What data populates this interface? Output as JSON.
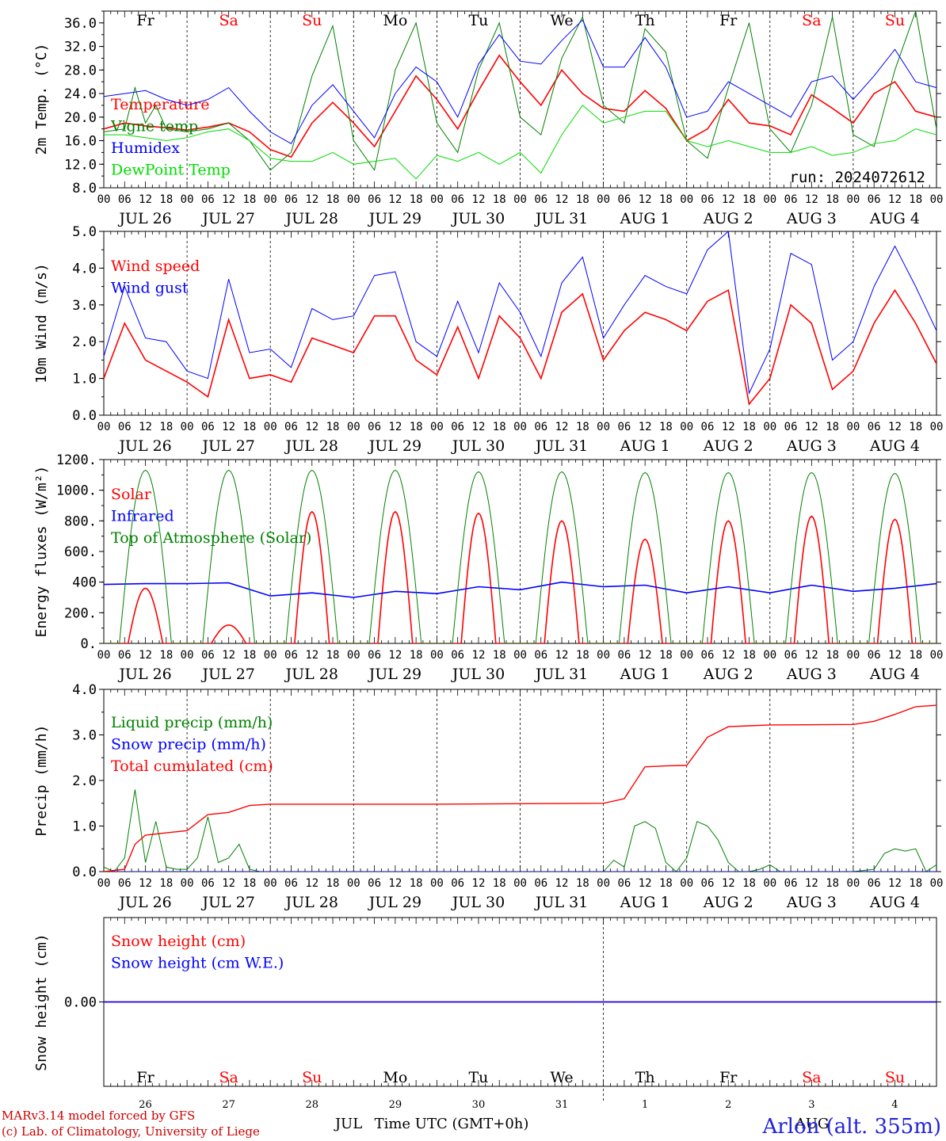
{
  "run_label": "run: 2024072612",
  "station": "Arlon (alt. 355m)",
  "credits": [
    "MARv3.14 model forced by GFS",
    "(c) Lab. of Climatology, University of Liege"
  ],
  "time_axis": {
    "hour_ticks": [
      "00",
      "06",
      "12",
      "18"
    ],
    "date_labels": [
      "JUL 26",
      "JUL 27",
      "JUL 28",
      "JUL 29",
      "JUL 30",
      "JUL 31",
      "AUG  1",
      "AUG  2",
      "AUG  3",
      "AUG  4"
    ],
    "weekdays": [
      "Fr",
      "Sa",
      "Su",
      "Mo",
      "Tu",
      "We",
      "Th",
      "Fr",
      "Sa",
      "Su"
    ],
    "weekday_colors": [
      "#000000",
      "#ff0000",
      "#ff0000",
      "#000000",
      "#000000",
      "#000000",
      "#000000",
      "#000000",
      "#ff0000",
      "#ff0000"
    ],
    "day_numbers": [
      "26",
      "27",
      "28",
      "29",
      "30",
      "31",
      "1",
      "2",
      "3",
      "4"
    ],
    "month_labels": [
      "JUL",
      "AUG"
    ],
    "xlabel": "Time UTC (GMT+0h)",
    "days": 10
  },
  "chart_data": [
    {
      "type": "line",
      "ylabel": "2m Temp. (°C)",
      "ylim": [
        8,
        38
      ],
      "yticks": [
        8,
        12,
        16,
        20,
        24,
        28,
        32,
        36
      ],
      "ytick_labels": [
        "8.0",
        "12.0",
        "16.0",
        "20.0",
        "24.0",
        "28.0",
        "32.0",
        "36.0"
      ],
      "x_unit": "hours since JUL 26 00 UTC",
      "series": [
        {
          "name": "Temperature",
          "color": "#ff0000",
          "width": 1.6,
          "x": [
            0,
            6,
            12,
            18,
            24,
            30,
            36,
            42,
            48,
            54,
            60,
            66,
            72,
            78,
            84,
            90,
            96,
            102,
            108,
            114,
            120,
            126,
            132,
            138,
            144,
            150,
            156,
            162,
            168,
            174,
            180,
            186,
            192,
            198,
            204,
            210,
            216,
            222,
            228,
            234,
            240
          ],
          "y": [
            18,
            19,
            18.5,
            18.2,
            17.8,
            18.3,
            19,
            17.5,
            14.5,
            13.2,
            19,
            22.5,
            19,
            15,
            21,
            27,
            23,
            18,
            24.5,
            30.5,
            26,
            22,
            28,
            24,
            21.5,
            21,
            24.5,
            21.5,
            16,
            18,
            23,
            19,
            18.5,
            17,
            23.8,
            21.5,
            19,
            24,
            26,
            21,
            20
          ]
        },
        {
          "name": "Vigne temp",
          "color": "#008000",
          "width": 1.0,
          "x": [
            0,
            6,
            9,
            12,
            15,
            18,
            24,
            30,
            36,
            42,
            48,
            54,
            60,
            66,
            72,
            78,
            84,
            90,
            96,
            102,
            108,
            114,
            120,
            126,
            132,
            138,
            144,
            150,
            156,
            162,
            168,
            174,
            180,
            186,
            192,
            198,
            204,
            210,
            216,
            222,
            228,
            234,
            240
          ],
          "y": [
            17.5,
            18,
            25,
            19,
            22,
            18,
            17.5,
            18,
            19,
            16,
            11,
            14,
            27,
            35.5,
            16,
            11,
            28,
            36,
            19,
            14,
            28,
            36,
            20,
            17,
            30,
            37,
            22,
            19,
            35,
            31,
            16,
            13,
            25,
            36,
            18,
            14,
            22,
            37,
            17,
            15,
            28,
            38,
            18
          ]
        },
        {
          "name": "Humidex",
          "color": "#0000ff",
          "width": 1.0,
          "x": [
            0,
            6,
            12,
            18,
            24,
            30,
            36,
            42,
            48,
            54,
            60,
            66,
            72,
            78,
            84,
            90,
            96,
            102,
            108,
            114,
            120,
            126,
            132,
            138,
            144,
            150,
            156,
            162,
            168,
            174,
            180,
            186,
            192,
            198,
            204,
            210,
            216,
            222,
            228,
            234,
            240
          ],
          "y": [
            23.5,
            24,
            24.5,
            23,
            22,
            23,
            25,
            21,
            17.5,
            15.5,
            22,
            25.5,
            21,
            16.5,
            24,
            28.5,
            26,
            20,
            29,
            34,
            29.5,
            29,
            33,
            36.5,
            28.5,
            28.5,
            33.5,
            28.5,
            20,
            21,
            26,
            24,
            22,
            20,
            26,
            27,
            23,
            27,
            31.5,
            26,
            25
          ]
        },
        {
          "name": "DewPoint Temp",
          "color": "#00dd00",
          "width": 1.0,
          "x": [
            0,
            6,
            12,
            18,
            24,
            30,
            36,
            42,
            48,
            54,
            60,
            66,
            72,
            78,
            84,
            90,
            96,
            102,
            108,
            114,
            120,
            126,
            132,
            138,
            144,
            150,
            156,
            162,
            168,
            174,
            180,
            186,
            192,
            198,
            204,
            210,
            216,
            222,
            228,
            234,
            240
          ],
          "y": [
            17,
            17,
            16.5,
            16,
            16.5,
            17.5,
            18,
            16,
            13,
            12.5,
            12.5,
            14,
            12,
            12.5,
            13,
            9.5,
            13.5,
            12.5,
            14,
            12,
            14,
            10.5,
            17,
            22,
            19,
            20,
            21,
            21,
            16,
            15,
            16,
            15,
            14,
            14,
            15,
            13.5,
            14,
            15.5,
            16,
            18,
            17
          ]
        }
      ]
    },
    {
      "type": "line",
      "ylabel": "10m Wind (m/s)",
      "ylim": [
        0,
        5
      ],
      "yticks": [
        0,
        1,
        2,
        3,
        4,
        5
      ],
      "ytick_labels": [
        "0.0",
        "1.0",
        "2.0",
        "3.0",
        "4.0",
        "5.0"
      ],
      "x_unit": "hours since JUL 26 00 UTC",
      "series": [
        {
          "name": "Wind speed",
          "color": "#ff0000",
          "width": 1.6,
          "x": [
            0,
            6,
            12,
            18,
            24,
            30,
            36,
            42,
            48,
            54,
            60,
            66,
            72,
            78,
            84,
            90,
            96,
            102,
            108,
            114,
            120,
            126,
            132,
            138,
            144,
            150,
            156,
            162,
            168,
            174,
            180,
            186,
            192,
            198,
            204,
            210,
            216,
            222,
            228,
            234,
            240
          ],
          "y": [
            1.0,
            2.5,
            1.5,
            1.2,
            0.9,
            0.5,
            2.6,
            1.0,
            1.1,
            0.9,
            2.1,
            1.9,
            1.7,
            2.7,
            2.7,
            1.5,
            1.1,
            2.4,
            1.0,
            2.7,
            2.1,
            1.0,
            2.8,
            3.3,
            1.5,
            2.3,
            2.8,
            2.6,
            2.3,
            3.1,
            3.4,
            0.3,
            1.0,
            3.0,
            2.5,
            0.7,
            1.2,
            2.5,
            3.4,
            2.5,
            1.4
          ]
        },
        {
          "name": "Wind gust",
          "color": "#0000ff",
          "width": 1.0,
          "x": [
            0,
            6,
            12,
            18,
            24,
            30,
            36,
            42,
            48,
            54,
            60,
            66,
            72,
            78,
            84,
            90,
            96,
            102,
            108,
            114,
            120,
            126,
            132,
            138,
            144,
            150,
            156,
            162,
            168,
            174,
            180,
            186,
            192,
            198,
            204,
            210,
            216,
            222,
            228,
            234,
            240
          ],
          "y": [
            1.6,
            3.5,
            2.1,
            2.0,
            1.2,
            1.0,
            3.7,
            1.7,
            1.8,
            1.3,
            2.9,
            2.6,
            2.7,
            3.8,
            3.9,
            2.0,
            1.6,
            3.1,
            1.7,
            3.6,
            2.8,
            1.6,
            3.6,
            4.3,
            2.1,
            3.0,
            3.8,
            3.5,
            3.3,
            4.5,
            5.0,
            0.6,
            1.8,
            4.4,
            4.1,
            1.5,
            2.0,
            3.5,
            4.6,
            3.5,
            2.3
          ]
        }
      ]
    },
    {
      "type": "line",
      "ylabel": "Energy fluxes (W/m²)",
      "ylim": [
        0,
        1200
      ],
      "yticks": [
        0,
        200,
        400,
        600,
        800,
        1000,
        1200
      ],
      "ytick_labels": [
        "0.",
        "200.",
        "400",
        "600.",
        "800.",
        "1000.",
        "1200."
      ],
      "x_unit": "hours since JUL 26 00 UTC",
      "series": [
        {
          "name": "Solar",
          "color": "#ff0000",
          "width": 1.6,
          "day_peaks": [
            360,
            120,
            860,
            860,
            850,
            800,
            680,
            800,
            830,
            810
          ]
        },
        {
          "name": "Infrared",
          "color": "#0000ff",
          "width": 1.6,
          "x": [
            0,
            12,
            24,
            36,
            48,
            60,
            72,
            84,
            96,
            108,
            120,
            132,
            144,
            156,
            168,
            180,
            192,
            204,
            216,
            228,
            240
          ],
          "y": [
            385,
            390,
            390,
            395,
            310,
            330,
            300,
            340,
            325,
            370,
            350,
            400,
            370,
            380,
            330,
            370,
            330,
            380,
            340,
            360,
            390
          ]
        },
        {
          "name": "Top of Atmosphere (Solar)",
          "color": "#008000",
          "width": 1.0,
          "day_peaks": [
            1130,
            1130,
            1130,
            1130,
            1120,
            1120,
            1115,
            1115,
            1115,
            1110
          ]
        }
      ]
    },
    {
      "type": "line",
      "ylabel": "Precip (mm/h)",
      "ylim": [
        0,
        4
      ],
      "yticks": [
        0,
        1,
        2,
        3,
        4
      ],
      "ytick_labels": [
        "0.0",
        "1.0",
        "2.0",
        "3.0",
        "4.0"
      ],
      "x_unit": "hours since JUL 26 00 UTC",
      "series": [
        {
          "name": "Liquid precip (mm/h)",
          "color": "#008000",
          "width": 1.0,
          "x": [
            0,
            3,
            6,
            9,
            12,
            15,
            18,
            21,
            24,
            27,
            30,
            33,
            36,
            39,
            42,
            45,
            48,
            72,
            96,
            120,
            144,
            147,
            150,
            153,
            156,
            159,
            162,
            165,
            168,
            171,
            174,
            177,
            180,
            183,
            186,
            189,
            192,
            195,
            198,
            204,
            210,
            216,
            222,
            225,
            228,
            231,
            234,
            237,
            240
          ],
          "y": [
            0.1,
            0.0,
            0.3,
            1.8,
            0.2,
            1.1,
            0.1,
            0.05,
            0.05,
            0.3,
            1.2,
            0.2,
            0.3,
            0.6,
            0.05,
            0.0,
            0.0,
            0.0,
            0.0,
            0.0,
            0.0,
            0.25,
            0.1,
            1.0,
            1.1,
            0.95,
            0.2,
            0.0,
            0.3,
            1.1,
            1.0,
            0.7,
            0.2,
            0.0,
            0.0,
            0.05,
            0.15,
            0.0,
            0.0,
            0.0,
            0.0,
            0.0,
            0.05,
            0.4,
            0.5,
            0.45,
            0.5,
            0.0,
            0.15
          ]
        },
        {
          "name": "Snow precip (mm/h)",
          "color": "#0000ff",
          "width": 1.0,
          "x": [
            0,
            240
          ],
          "y": [
            0,
            0
          ]
        },
        {
          "name": "Total cumulated (cm)",
          "color": "#ff0000",
          "width": 1.4,
          "x": [
            0,
            6,
            9,
            12,
            18,
            24,
            30,
            36,
            42,
            48,
            72,
            96,
            120,
            144,
            150,
            156,
            162,
            168,
            174,
            180,
            186,
            192,
            216,
            222,
            228,
            234,
            240
          ],
          "y": [
            0,
            0.05,
            0.6,
            0.8,
            0.85,
            0.9,
            1.25,
            1.3,
            1.45,
            1.48,
            1.48,
            1.48,
            1.49,
            1.5,
            1.6,
            2.3,
            2.32,
            2.33,
            2.95,
            3.18,
            3.2,
            3.22,
            3.23,
            3.3,
            3.45,
            3.62,
            3.65
          ]
        }
      ]
    },
    {
      "type": "line",
      "ylabel": "Snow height (cm)",
      "ylim": [
        -1,
        1
      ],
      "yticks": [
        0
      ],
      "ytick_labels": [
        "0.00"
      ],
      "x_unit": "hours since JUL 26 00 UTC",
      "series": [
        {
          "name": "Snow height (cm)",
          "color": "#ff0000",
          "width": 1.4,
          "x": [
            0,
            240
          ],
          "y": [
            0,
            0
          ]
        },
        {
          "name": "Snow height (cm W.E.)",
          "color": "#0000ff",
          "width": 1.4,
          "x": [
            0,
            240
          ],
          "y": [
            0,
            0
          ]
        }
      ]
    }
  ]
}
